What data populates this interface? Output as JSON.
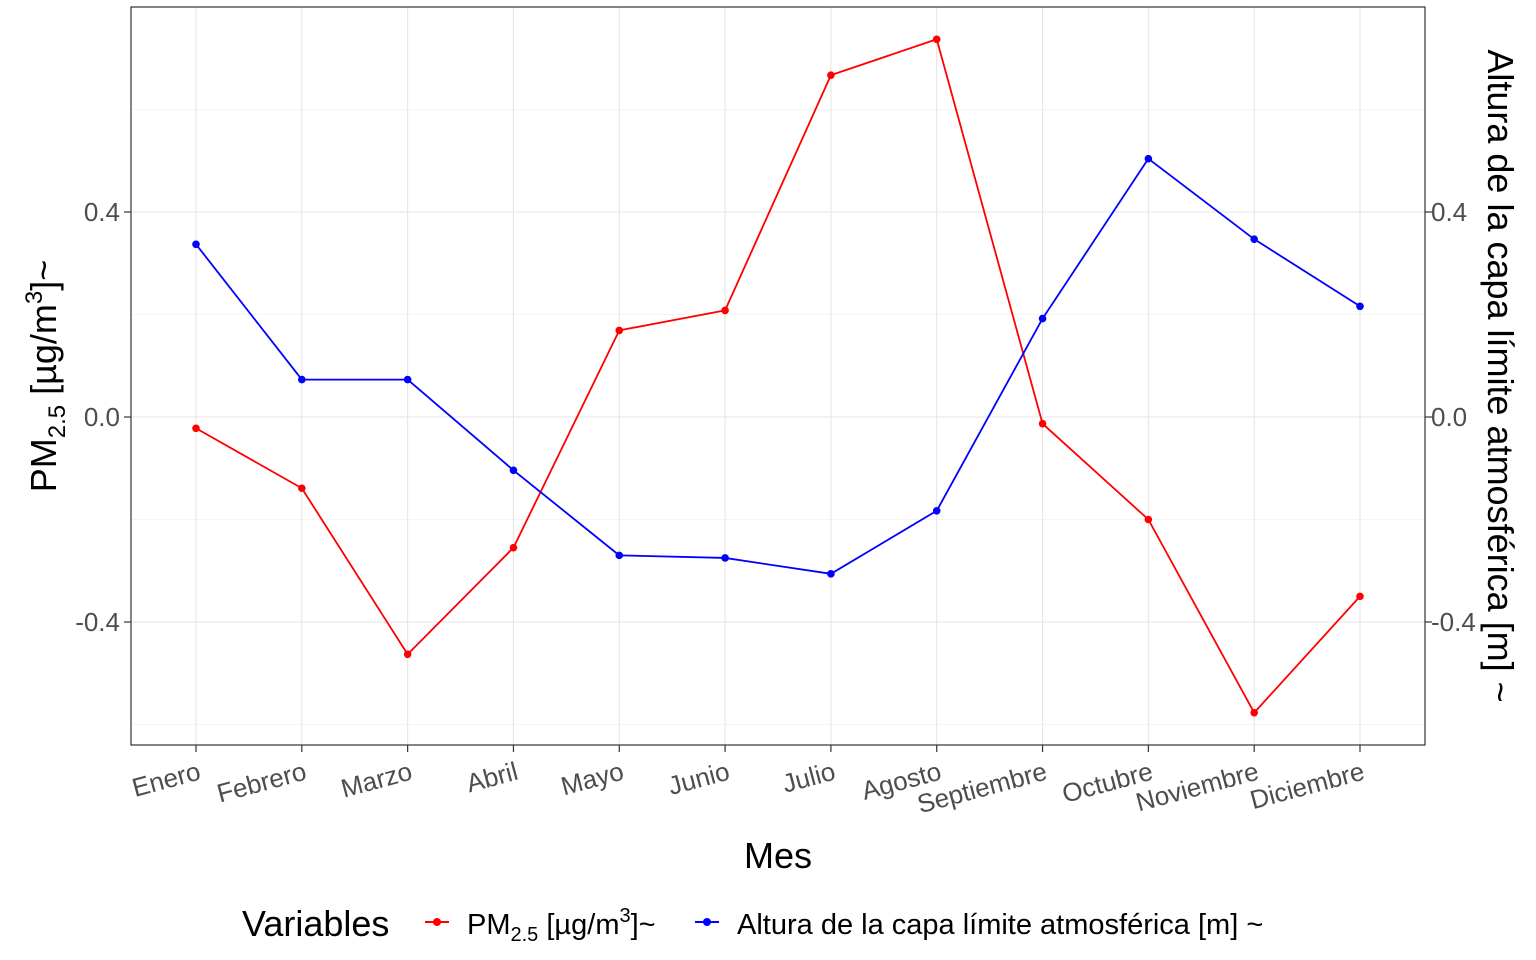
{
  "chart_data": {
    "type": "line",
    "xlabel": "Mes",
    "ylabel": "PM2.5 [µg/m3]~",
    "ylabel_parts": {
      "base": "PM",
      "sub": "2.5",
      "mid": " [µg/m",
      "sup": "3",
      "end": "]~"
    },
    "y2label": "Altura de la capa límite atmosférica [m] ~",
    "categories": [
      "Enero",
      "Febrero",
      "Marzo",
      "Abril",
      "Mayo",
      "Junio",
      "Julio",
      "Agosto",
      "Septiembre",
      "Octubre",
      "Noviembre",
      "Diciembre"
    ],
    "ylim": [
      -0.64,
      0.8
    ],
    "y_ticks": [
      -0.4,
      0.0,
      0.4
    ],
    "y_tick_labels": [
      "-0.4",
      "0.0",
      "0.4"
    ],
    "y2_ticks": [
      -0.4,
      0.0,
      0.4
    ],
    "y2_tick_labels": [
      "-0.4",
      "0.0",
      "0.4"
    ],
    "grid": true,
    "legend_position": "bottom",
    "legend_title": "Variables",
    "series": [
      {
        "name": "PM2.5 [µg/m3]~",
        "label_parts": {
          "base": "PM",
          "sub": "2.5",
          "mid": " [µg/m",
          "sup": "3",
          "end": "]~"
        },
        "color": "#ff0000",
        "values": [
          -0.022,
          -0.139,
          -0.463,
          -0.255,
          0.169,
          0.208,
          0.667,
          0.737,
          -0.013,
          -0.2,
          -0.577,
          -0.35
        ]
      },
      {
        "name": "Altura de la capa límite atmosférica [m] ~",
        "label_parts": {
          "base": "Altura de la capa límite atmosférica [m] ~"
        },
        "color": "#0000ff",
        "values": [
          0.337,
          0.073,
          0.073,
          -0.104,
          -0.27,
          -0.275,
          -0.306,
          -0.183,
          0.192,
          0.504,
          0.347,
          0.216
        ]
      }
    ]
  }
}
